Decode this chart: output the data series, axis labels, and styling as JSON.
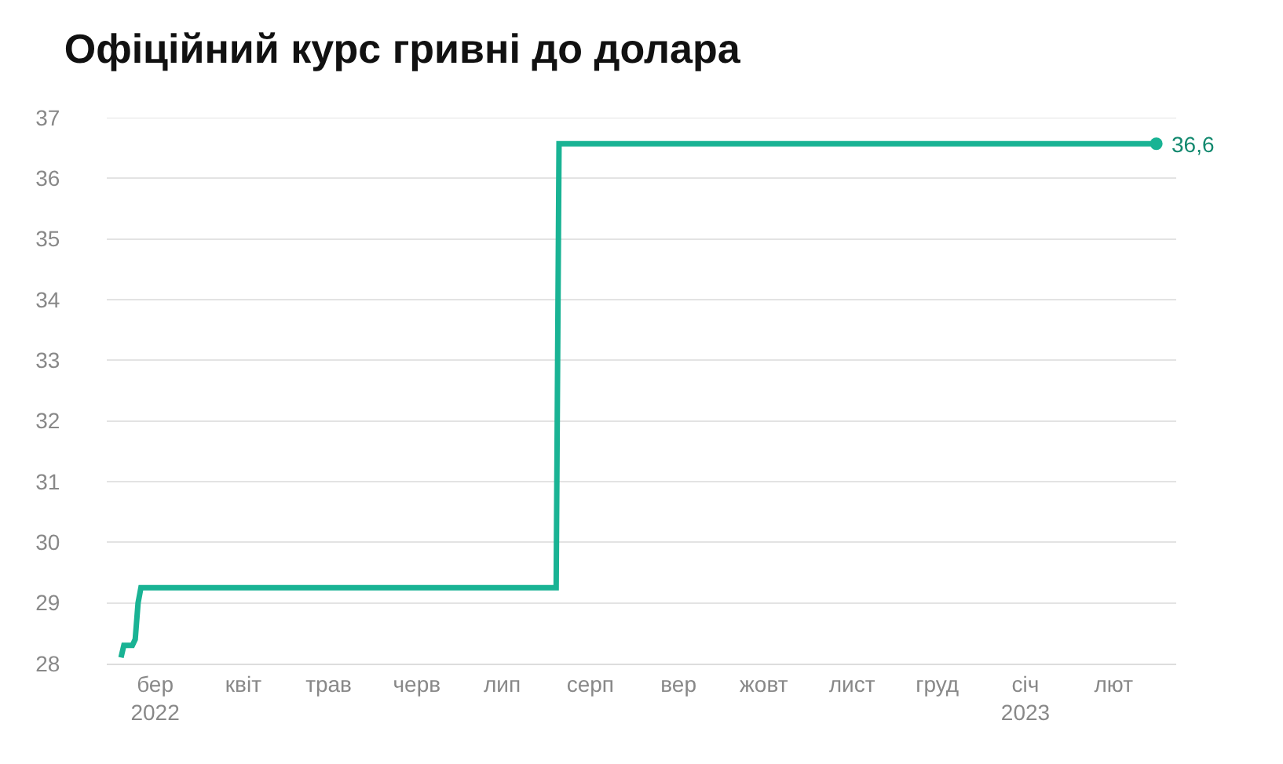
{
  "chart_data": {
    "type": "line",
    "title": "Офіційний курс гривні до долара",
    "x": [
      "2022-02-17",
      "2022-02-18",
      "2022-02-21",
      "2022-02-22",
      "2022-02-23",
      "2022-02-24",
      "2022-07-20",
      "2022-07-21",
      "2023-02-16"
    ],
    "series": [
      {
        "color": "#19b394",
        "values": [
          28.1,
          28.3,
          28.3,
          28.4,
          29.0,
          29.25,
          29.25,
          36.57,
          36.57
        ]
      }
    ],
    "xlim": [
      "2022-02-12",
      "2023-02-23"
    ],
    "xticks": [
      {
        "value": "2022-03-01",
        "label": "бер\n2022"
      },
      {
        "value": "2022-04-01",
        "label": "квіт"
      },
      {
        "value": "2022-05-01",
        "label": "трав"
      },
      {
        "value": "2022-06-01",
        "label": "черв"
      },
      {
        "value": "2022-07-01",
        "label": "лип"
      },
      {
        "value": "2022-08-01",
        "label": "серп"
      },
      {
        "value": "2022-09-01",
        "label": "вер"
      },
      {
        "value": "2022-10-01",
        "label": "жовт"
      },
      {
        "value": "2022-11-01",
        "label": "лист"
      },
      {
        "value": "2022-12-01",
        "label": "груд"
      },
      {
        "value": "2023-01-01",
        "label": "січ\n2023"
      },
      {
        "value": "2023-02-01",
        "label": "лют"
      }
    ],
    "ylim": [
      28,
      37
    ],
    "yticks": [
      28,
      29,
      30,
      31,
      32,
      33,
      34,
      35,
      36,
      37
    ],
    "grid": "y",
    "marker": "none",
    "line_style": "solid",
    "annotations": [
      {
        "text": "36,6",
        "x": "2023-02-16",
        "y": 36.57
      }
    ]
  }
}
